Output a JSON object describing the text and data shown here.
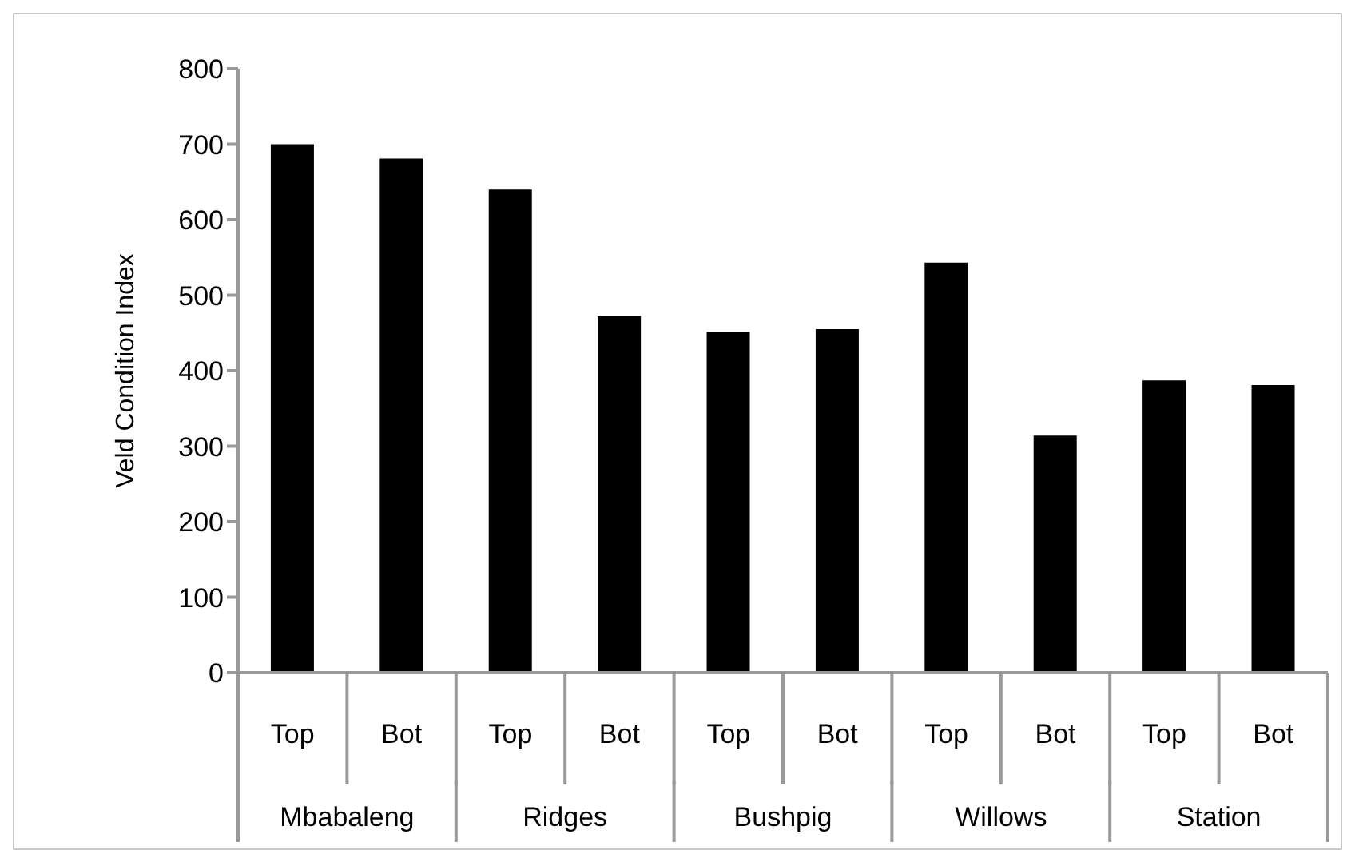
{
  "chart_data": {
    "type": "bar",
    "ylabel": "Veld Condition Index",
    "categories": [
      "Top",
      "Bot",
      "Top",
      "Bot",
      "Top",
      "Bot",
      "Top",
      "Bot",
      "Top",
      "Bot"
    ],
    "values": [
      700,
      681,
      640,
      472,
      451,
      455,
      543,
      314,
      387,
      381
    ],
    "color": "#000000",
    "annotations": [
      "Mbabaleng",
      "Ridges",
      "Bushpig",
      "Willows",
      "Station"
    ],
    "ylim": [
      0,
      800
    ],
    "yticks": [
      0,
      100,
      200,
      300,
      400,
      500,
      600,
      700,
      800
    ],
    "grid": false,
    "legend": false
  }
}
